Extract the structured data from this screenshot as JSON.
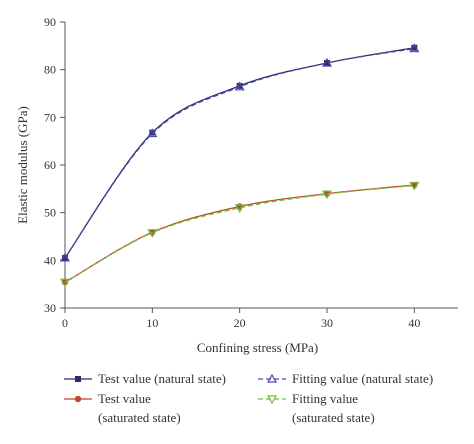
{
  "chart_data": {
    "type": "line",
    "title": "",
    "xlabel": "Confining stress (MPa)",
    "ylabel": "Elastic modulus (GPa)",
    "xlim": [
      0,
      45
    ],
    "ylim": [
      30,
      90
    ],
    "x_ticks": [
      "0",
      "10",
      "20",
      "30",
      "40"
    ],
    "y_ticks": [
      "30",
      "40",
      "50",
      "60",
      "70",
      "80",
      "90"
    ],
    "grid": false,
    "legend_placement": "bottom",
    "x": [
      0,
      10,
      20,
      30,
      40
    ],
    "series": [
      {
        "name": "Test value (natural state)",
        "values": [
          40.5,
          66.8,
          76.6,
          81.4,
          84.6
        ],
        "color": "#2b2b6b",
        "marker": "square",
        "line_style": "solid"
      },
      {
        "name": "Test value (saturated state)",
        "values": [
          35.4,
          45.9,
          51.3,
          54.0,
          55.8
        ],
        "color": "#c0452a",
        "marker": "circle",
        "line_style": "solid"
      },
      {
        "name": "Fitting value (natural state)",
        "values": [
          40.5,
          66.6,
          76.4,
          81.4,
          84.4
        ],
        "color": "#4a4aa8",
        "marker": "triangle-up-open",
        "line_style": "dashed"
      },
      {
        "name": "Fitting value (saturated state)",
        "values": [
          35.4,
          45.8,
          51.0,
          53.9,
          55.7
        ],
        "color": "#6fbf3a",
        "marker": "triangle-down-open",
        "line_style": "dashed"
      }
    ],
    "legend": [
      {
        "lines": [
          "Test value (natural state)"
        ],
        "series_index": 0
      },
      {
        "lines": [
          "Fitting value (natural state)"
        ],
        "series_index": 2
      },
      {
        "lines": [
          "Test value",
          "(saturated state)"
        ],
        "series_index": 1
      },
      {
        "lines": [
          "Fitting value",
          "(saturated state)"
        ],
        "series_index": 3
      }
    ]
  }
}
